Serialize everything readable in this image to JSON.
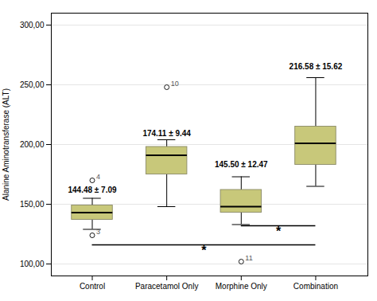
{
  "chart_data": {
    "type": "box",
    "categories": [
      "Control",
      "Paracetamol Only",
      "Morphine Only",
      "Combination"
    ],
    "boxes": [
      {
        "q1": 137,
        "median": 143,
        "q3": 149,
        "whislo": 129,
        "whishi": 155,
        "outliers": [
          124,
          170
        ],
        "outlier_labels": [
          "3",
          "4"
        ]
      },
      {
        "q1": 175,
        "median": 191,
        "q3": 198,
        "whislo": 148,
        "whishi": 204,
        "outliers": [
          248
        ],
        "outlier_labels": [
          "10"
        ]
      },
      {
        "q1": 143,
        "median": 148,
        "q3": 162,
        "whislo": 133,
        "whishi": 173,
        "outliers": [
          102
        ],
        "outlier_labels": [
          "11"
        ]
      },
      {
        "q1": 183,
        "median": 201,
        "q3": 215,
        "whislo": 165,
        "whishi": 256,
        "outliers": [],
        "outlier_labels": []
      }
    ],
    "color": "#c8c87a",
    "ylabel": "Alanine Aminotransferase (ALT)",
    "ylim": [
      90,
      310
    ],
    "yticks": [
      {
        "value": 100,
        "label": "100,00"
      },
      {
        "value": 150,
        "label": "150,00"
      },
      {
        "value": 200,
        "label": "200,00"
      },
      {
        "value": 250,
        "label": "250,00"
      },
      {
        "value": 300,
        "label": "300,00"
      }
    ],
    "grid": true,
    "annotations": [
      {
        "text": "144.48 ± 7.09",
        "category": "Control",
        "y": 160
      },
      {
        "text": "174.11 ± 9.44",
        "category": "Paracetamol Only",
        "y": 207
      },
      {
        "text": "145.50 ± 12.47",
        "category": "Morphine Only",
        "y": 181
      },
      {
        "text": "216.58 ± 15.62",
        "category": "Combination",
        "y": 263
      }
    ],
    "significance": [
      {
        "from": "Control",
        "to": "Combination",
        "y": 116,
        "label": "*"
      },
      {
        "from": "Morphine Only",
        "to": "Combination",
        "y": 132,
        "label": "*"
      }
    ]
  }
}
